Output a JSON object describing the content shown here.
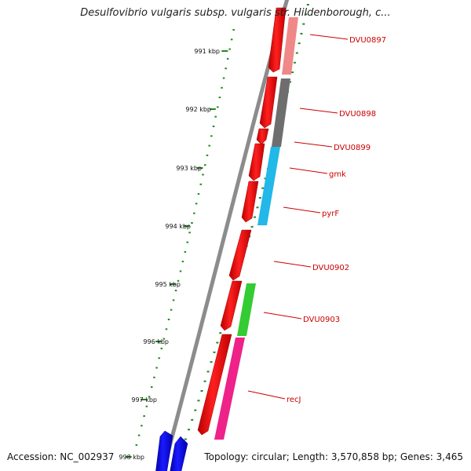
{
  "title": "Desulfovibrio vulgaris subsp. vulgaris str. Hildenborough, c...",
  "accession_label": "Accession: NC_002937",
  "topology_label": "Topology: circular; Length: 3,570,858 bp; Genes: 3,465",
  "tick_labels": [
    "991 kbp",
    "992 kbp",
    "993 kbp",
    "994 kbp",
    "995 kbp",
    "996 kbp",
    "997 kbp",
    "998 kbp"
  ],
  "gene_labels": [
    "DVU0897",
    "DVU0898",
    "DVU0899",
    "gmk",
    "pyrF",
    "DVU0902",
    "DVU0903",
    "recJ"
  ],
  "colors": {
    "backbone": "#8a8a8a",
    "forward_gene": "#ff1a1a",
    "reverse_gene": "#1414ff",
    "tick": "#1f8a1f",
    "label": "#cc0000",
    "DVU0897_feature": "#f08080",
    "DVU0898_feature": "#6e6e6e",
    "gmk_feature": "#22b8e8",
    "DVU0903_feature": "#33cc33",
    "recJ_feature": "#ee2288"
  }
}
